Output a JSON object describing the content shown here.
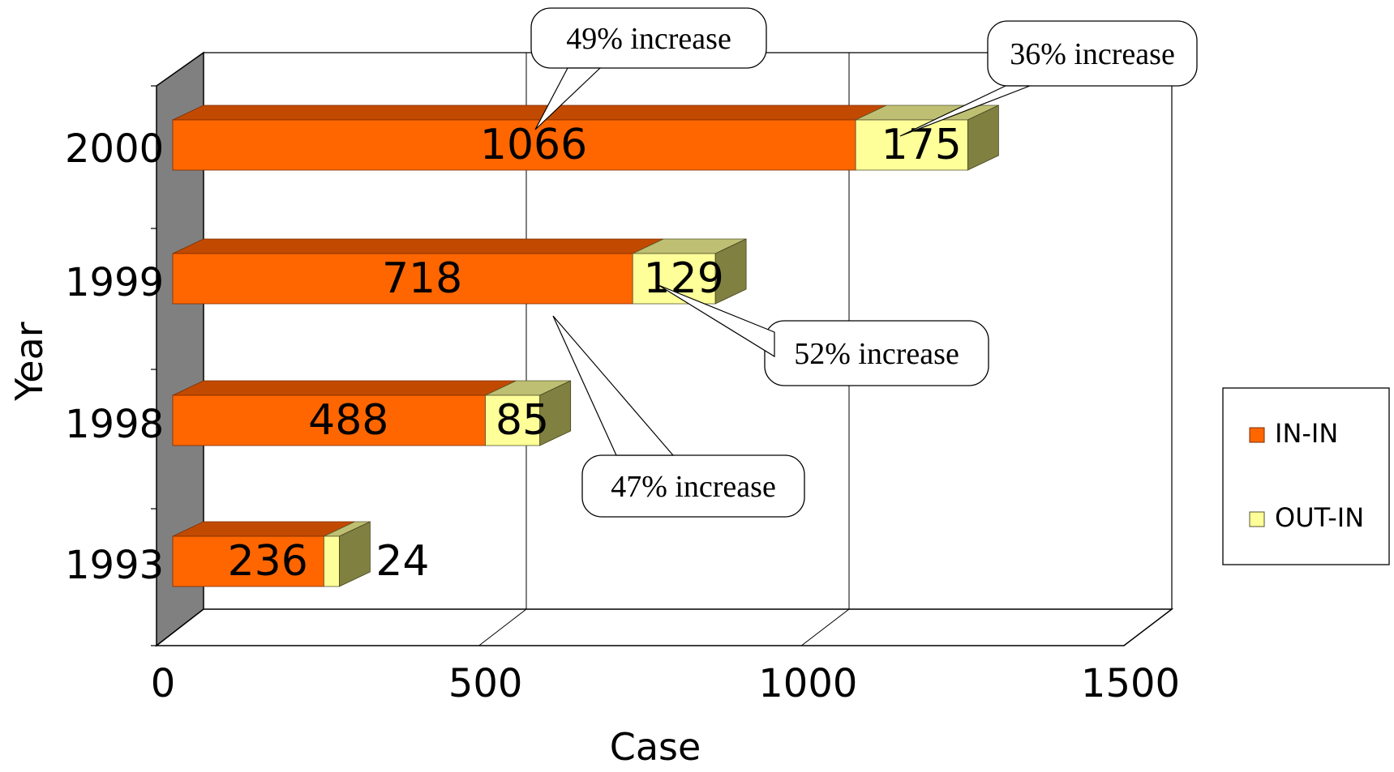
{
  "chart_data": {
    "type": "bar",
    "orientation": "horizontal",
    "stacked": true,
    "three_d": true,
    "categories": [
      "1993",
      "1998",
      "1999",
      "2000"
    ],
    "series": [
      {
        "name": "IN-IN",
        "values": [
          236,
          488,
          718,
          1066
        ]
      },
      {
        "name": "OUT-IN",
        "values": [
          24,
          85,
          129,
          175
        ]
      }
    ],
    "xlabel": "Case",
    "ylabel": "Year",
    "xlim": [
      0,
      1500
    ],
    "xticks": [
      "0",
      "500",
      "1000",
      "1500"
    ],
    "grid": "vertical",
    "legend_position": "right",
    "annotations": [
      {
        "text": "49% increase"
      },
      {
        "text": "36% increase"
      },
      {
        "text": "52% increase"
      },
      {
        "text": "47% increase"
      }
    ]
  },
  "colors": {
    "in_in": "#ff6600",
    "in_in_top": "#c24a00",
    "out_in": "#ffff99",
    "out_in_top": "#bfbf73",
    "out_in_side": "#808040",
    "wall": "#808080"
  }
}
